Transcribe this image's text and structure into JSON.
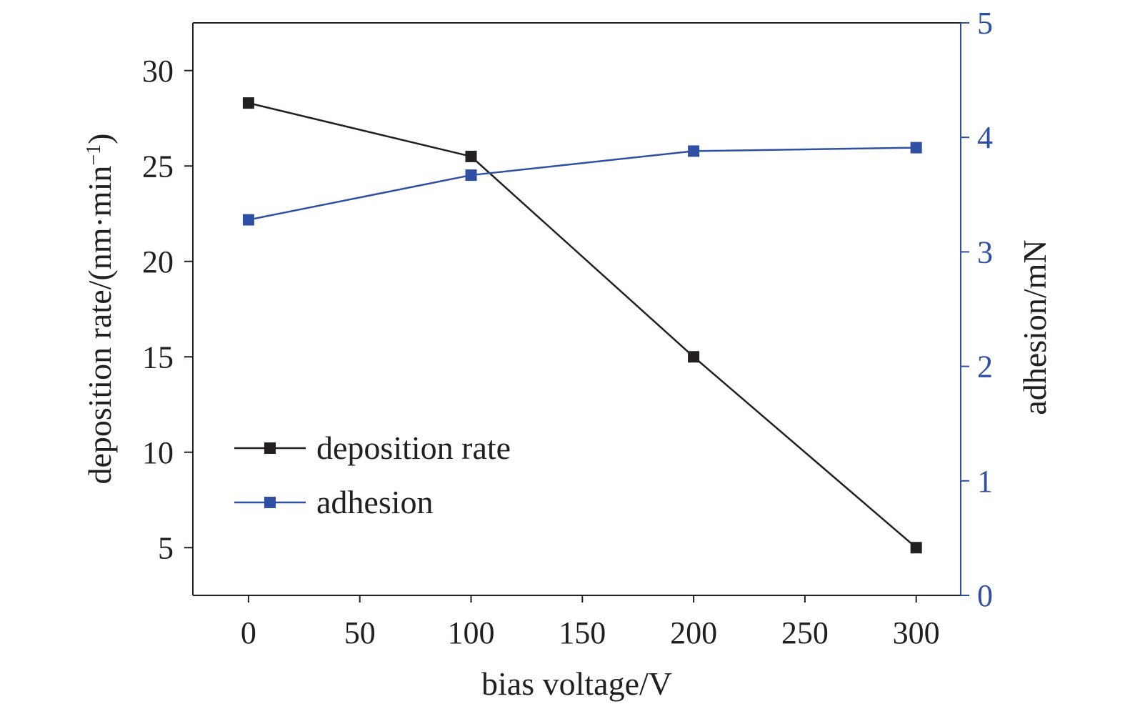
{
  "chart_data": {
    "type": "line",
    "x": [
      0,
      100,
      200,
      300
    ],
    "xlabel": "bias voltage/V",
    "xlim": [
      -25,
      320
    ],
    "xticks": [
      0,
      50,
      100,
      150,
      200,
      250,
      300
    ],
    "ylabel_left": {
      "prefix": "deposition rate/(nm·min",
      "superscript": "−1",
      "suffix": ")"
    },
    "ylim_left": [
      2.5,
      32.5
    ],
    "yticks_left": [
      5,
      10,
      15,
      20,
      25,
      30
    ],
    "ylabel_right": "adhesion/mN",
    "ylim_right": [
      0,
      5
    ],
    "yticks_right": [
      0,
      1,
      2,
      3,
      4,
      5
    ],
    "grid": false,
    "legend_position": "lower-left",
    "series": [
      {
        "name": "deposition rate",
        "axis": "left",
        "color": "#231f20",
        "marker": "square",
        "values": [
          28.3,
          25.5,
          15.0,
          5.0
        ]
      },
      {
        "name": "adhesion",
        "axis": "right",
        "color": "#2e4fa3",
        "marker": "square",
        "values": [
          3.28,
          3.67,
          3.88,
          3.91
        ]
      }
    ]
  }
}
